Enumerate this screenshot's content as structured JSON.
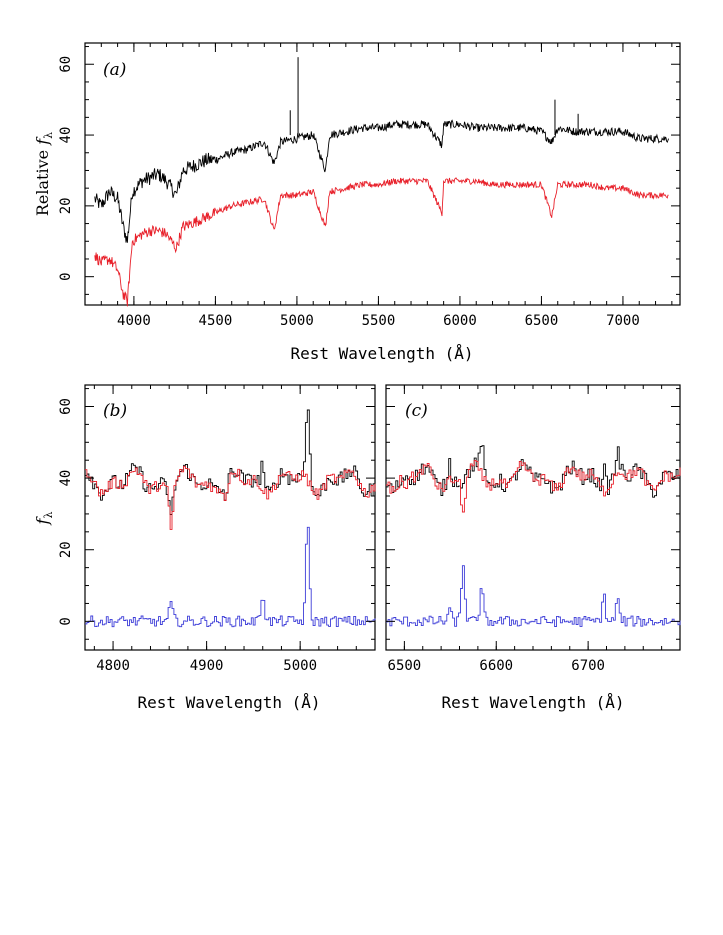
{
  "colors": {
    "observed": "#000000",
    "model": "#e8202a",
    "residual": "#3d3dd8"
  },
  "chart_data": [
    {
      "type": "line",
      "panel": "a",
      "panel_label": "(a)",
      "xlabel": "Rest Wavelength (Å)",
      "ylabel_main": "Relative ",
      "ylabel_f": "f",
      "ylabel_sub": "λ",
      "xlim": [
        3700,
        7350
      ],
      "ylim": [
        -8,
        66
      ],
      "xticks": [
        4000,
        4500,
        5000,
        5500,
        6000,
        6500,
        7000
      ],
      "yticks": [
        0,
        20,
        40,
        60
      ],
      "series": [
        {
          "color_key": "observed",
          "x": [
            3760,
            3800,
            3850,
            3900,
            3935,
            3960,
            3990,
            4050,
            4100,
            4150,
            4200,
            4260,
            4300,
            4350,
            4400,
            4450,
            4500,
            4550,
            4600,
            4700,
            4800,
            4860,
            4900,
            5000,
            5100,
            5175,
            5200,
            5300,
            5400,
            5500,
            5600,
            5700,
            5800,
            5890,
            5900,
            6000,
            6100,
            6200,
            6300,
            6400,
            6500,
            6563,
            6600,
            6700,
            6800,
            6900,
            7000,
            7100,
            7200,
            7280
          ],
          "y": [
            22,
            20,
            24,
            22,
            14,
            10,
            24,
            27,
            28,
            29,
            27,
            23,
            30,
            31,
            32,
            33,
            33,
            34,
            35,
            36,
            38,
            32,
            38,
            39,
            40,
            30,
            40,
            41,
            42,
            42,
            43,
            43,
            43,
            37,
            43,
            43,
            42,
            42,
            42,
            42,
            41,
            38,
            42,
            41,
            41,
            41,
            41,
            39,
            39,
            39
          ]
        },
        {
          "color_key": "model",
          "x": [
            3760,
            3800,
            3850,
            3900,
            3935,
            3960,
            3990,
            4050,
            4100,
            4150,
            4200,
            4260,
            4300,
            4350,
            4400,
            4450,
            4500,
            4550,
            4600,
            4700,
            4800,
            4860,
            4900,
            5000,
            5100,
            5175,
            5200,
            5300,
            5400,
            5500,
            5600,
            5700,
            5800,
            5890,
            5900,
            6000,
            6100,
            6200,
            6300,
            6400,
            6500,
            6563,
            6600,
            6700,
            6800,
            6900,
            7000,
            7100,
            7200,
            7280
          ],
          "y": [
            6,
            4,
            5,
            2,
            -5,
            -7,
            10,
            12,
            13,
            13,
            12,
            8,
            14,
            15,
            16,
            17,
            18,
            19,
            20,
            21,
            22,
            13,
            23,
            23,
            24,
            14,
            24,
            25,
            26,
            26,
            27,
            27,
            27,
            18,
            27,
            27,
            27,
            26,
            26,
            26,
            26,
            17,
            26,
            26,
            26,
            25,
            25,
            23,
            23,
            23
          ]
        }
      ],
      "spikes": [
        {
          "series": "observed",
          "x": 5007,
          "y": 62
        },
        {
          "series": "observed",
          "x": 4959,
          "y": 47
        },
        {
          "series": "observed",
          "x": 6583,
          "y": 50
        },
        {
          "series": "observed",
          "x": 6725,
          "y": 46
        }
      ]
    },
    {
      "type": "line",
      "panel": "b",
      "panel_label": "(b)",
      "xlabel": "Rest Wavelength (Å)",
      "ylabel_f": "f",
      "ylabel_sub": "λ",
      "xlim": [
        4770,
        5080
      ],
      "ylim": [
        -8,
        66
      ],
      "xticks": [
        4800,
        4900,
        5000
      ],
      "yticks": [
        0,
        20,
        40,
        60
      ],
      "series": [
        {
          "color_key": "observed",
          "baseline": 39,
          "features": [
            [
              4861,
              -8
            ],
            [
              4959,
              7
            ],
            [
              5007,
              23
            ],
            [
              4920,
              -4
            ]
          ]
        },
        {
          "color_key": "model",
          "baseline": 39,
          "features": [
            [
              4861,
              -12
            ],
            [
              4920,
              -4
            ]
          ]
        },
        {
          "color_key": "residual",
          "baseline": 0,
          "features": [
            [
              4861,
              5
            ],
            [
              4959,
              8
            ],
            [
              5007,
              27
            ]
          ]
        }
      ]
    },
    {
      "type": "line",
      "panel": "c",
      "panel_label": "(c)",
      "xlabel": "Rest Wavelength (Å)",
      "xlim": [
        6480,
        6800
      ],
      "ylim": [
        -8,
        66
      ],
      "xticks": [
        6500,
        6600,
        6700
      ],
      "yticks": [],
      "series": [
        {
          "color_key": "observed",
          "baseline": 40,
          "features": [
            [
              6548,
              5
            ],
            [
              6563,
              0
            ],
            [
              6583,
              10
            ],
            [
              6716,
              6
            ],
            [
              6731,
              6
            ]
          ]
        },
        {
          "color_key": "model",
          "baseline": 40,
          "features": [
            [
              6563,
              -10
            ],
            [
              6500,
              -3
            ]
          ]
        },
        {
          "color_key": "residual",
          "baseline": 0,
          "features": [
            [
              6548,
              3
            ],
            [
              6563,
              16
            ],
            [
              6583,
              9
            ],
            [
              6716,
              7
            ],
            [
              6731,
              6
            ]
          ]
        }
      ]
    }
  ]
}
